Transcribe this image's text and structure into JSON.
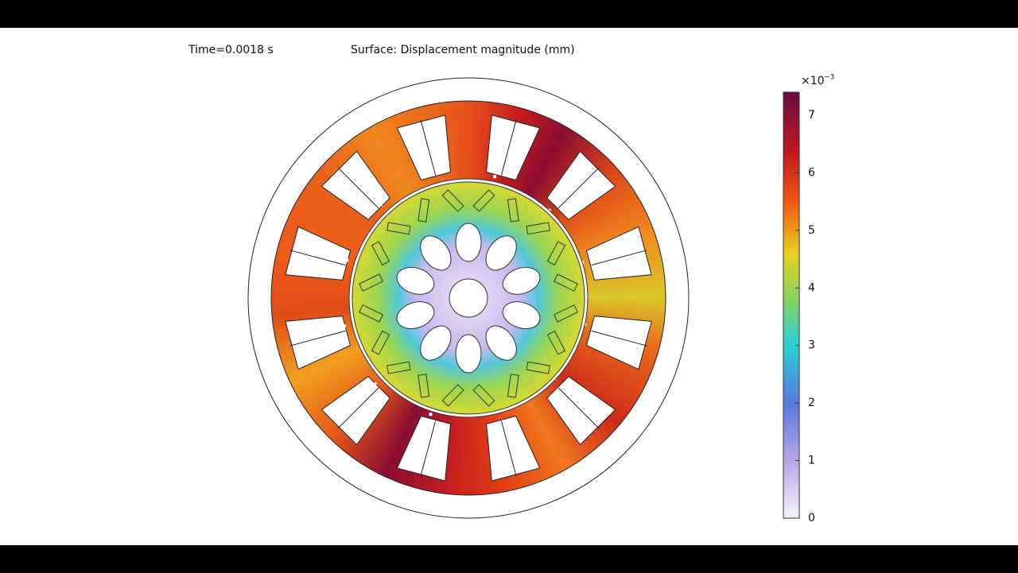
{
  "header": {
    "time_label": "Time=0.0018 s",
    "title": "Surface: Displacement magnitude (mm)"
  },
  "colorbar": {
    "multiplier": "×10",
    "exponent": "−3",
    "lim": [
      0,
      7.4
    ],
    "ticks": [
      0,
      1,
      2,
      3,
      4,
      5,
      6,
      7
    ]
  }
}
